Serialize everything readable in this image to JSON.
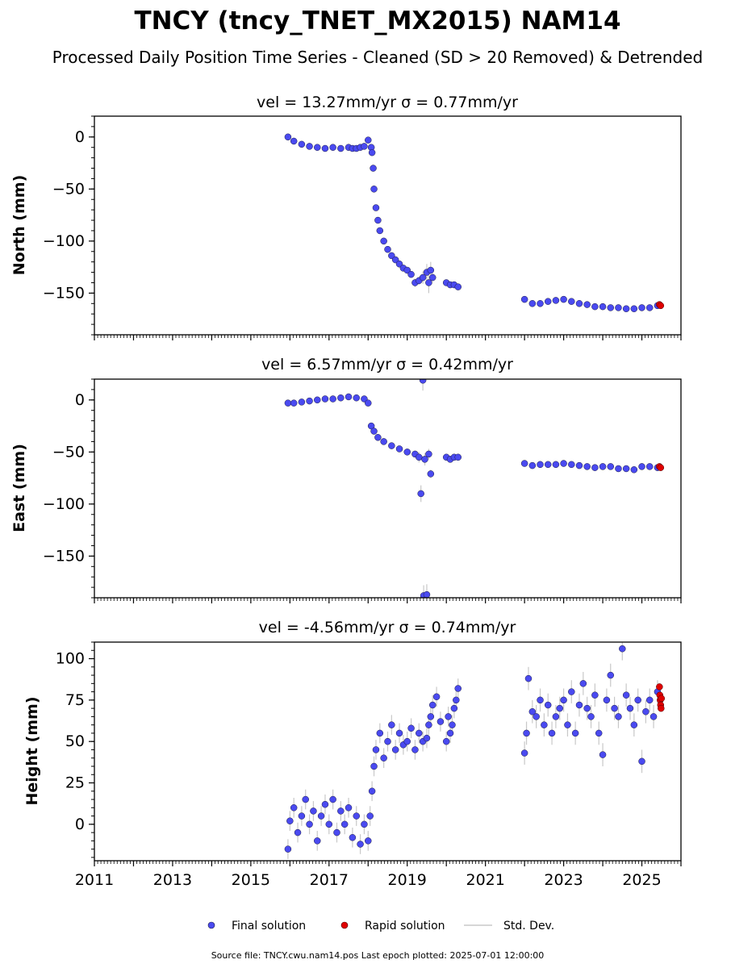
{
  "title": "TNCY (tncy_TNET_MX2015) NAM14",
  "subtitle": "Processed Daily Position Time Series - Cleaned (SD > 20 Removed) & Detrended",
  "legend": {
    "final": "Final solution",
    "rapid": "Rapid solution",
    "std": "Std. Dev."
  },
  "footer": "Source file: TNCY.cwu.nam14.pos  Last epoch plotted: 2025-07-01 12:00:00",
  "colors": {
    "final": "#4a4af0",
    "rapid": "#e00000",
    "stddev": "#c8c8c8",
    "edge": "#1a1a40"
  },
  "chart_data": [
    {
      "type": "scatter",
      "panel": "north",
      "title": "vel = 13.27mm/yr   σ = 0.77mm/yr",
      "ylabel": "North (mm)",
      "xlim": [
        2011,
        2026
      ],
      "ylim": [
        -190,
        20
      ],
      "yticks": [
        0,
        -50,
        -100,
        -150
      ],
      "ytick_labels": [
        "0",
        "−50",
        "−100",
        "−150"
      ],
      "xticks": [
        2011,
        2013,
        2015,
        2017,
        2019,
        2021,
        2023,
        2025
      ],
      "series": [
        {
          "name": "Final solution",
          "x": [
            2015.95,
            2016.1,
            2016.3,
            2016.5,
            2016.7,
            2016.9,
            2017.1,
            2017.3,
            2017.5,
            2017.6,
            2017.7,
            2017.8,
            2017.9,
            2018.0,
            2018.08,
            2018.1,
            2018.13,
            2018.15,
            2018.2,
            2018.25,
            2018.3,
            2018.4,
            2018.5,
            2018.6,
            2018.7,
            2018.8,
            2018.9,
            2019.0,
            2019.1,
            2019.2,
            2019.3,
            2019.4,
            2019.5,
            2019.55,
            2019.6,
            2019.65,
            2020.0,
            2020.1,
            2020.2,
            2020.3,
            2022.0,
            2022.2,
            2022.4,
            2022.6,
            2022.8,
            2023.0,
            2023.2,
            2023.4,
            2023.6,
            2023.8,
            2024.0,
            2024.2,
            2024.4,
            2024.6,
            2024.8,
            2025.0,
            2025.2,
            2025.4
          ],
          "y": [
            0,
            -4,
            -7,
            -9,
            -10,
            -11,
            -10,
            -11,
            -10,
            -11,
            -11,
            -10,
            -9,
            -3,
            -10,
            -15,
            -30,
            -50,
            -68,
            -80,
            -90,
            -100,
            -108,
            -114,
            -118,
            -122,
            -126,
            -128,
            -132,
            -140,
            -138,
            -135,
            -130,
            -140,
            -128,
            -135,
            -140,
            -142,
            -142,
            -144,
            -156,
            -160,
            -160,
            -158,
            -157,
            -156,
            -158,
            -160,
            -161,
            -163,
            -163,
            -164,
            -164,
            -165,
            -165,
            -164,
            -164,
            -162
          ],
          "err": [
            2,
            2,
            2,
            2,
            2,
            2,
            2,
            2,
            2,
            2,
            2,
            2,
            2,
            2,
            2,
            2,
            3,
            3,
            3,
            3,
            3,
            2,
            2,
            2,
            2,
            2,
            2,
            3,
            3,
            4,
            4,
            6,
            8,
            10,
            8,
            4,
            3,
            3,
            3,
            3,
            2,
            2,
            2,
            2,
            2,
            2,
            2,
            2,
            2,
            2,
            2,
            2,
            2,
            2,
            2,
            2,
            2,
            2
          ]
        },
        {
          "name": "Rapid solution",
          "x": [
            2025.45,
            2025.48
          ],
          "y": [
            -161,
            -162
          ]
        }
      ]
    },
    {
      "type": "scatter",
      "panel": "east",
      "title": "vel = 6.57mm/yr   σ = 0.42mm/yr",
      "ylabel": "East (mm)",
      "xlim": [
        2011,
        2026
      ],
      "ylim": [
        -190,
        20
      ],
      "yticks": [
        0,
        -50,
        -100,
        -150
      ],
      "ytick_labels": [
        "0",
        "−50",
        "−100",
        "−150"
      ],
      "xticks": [
        2011,
        2013,
        2015,
        2017,
        2019,
        2021,
        2023,
        2025
      ],
      "series": [
        {
          "name": "Final solution",
          "x": [
            2015.95,
            2016.1,
            2016.3,
            2016.5,
            2016.7,
            2016.9,
            2017.1,
            2017.3,
            2017.5,
            2017.7,
            2017.9,
            2018.0,
            2018.08,
            2018.15,
            2018.25,
            2018.4,
            2018.6,
            2018.8,
            2019.0,
            2019.2,
            2019.3,
            2019.35,
            2019.4,
            2019.42,
            2019.45,
            2019.5,
            2019.55,
            2019.6,
            2020.0,
            2020.1,
            2020.2,
            2020.3,
            2022.0,
            2022.2,
            2022.4,
            2022.6,
            2022.8,
            2023.0,
            2023.2,
            2023.4,
            2023.6,
            2023.8,
            2024.0,
            2024.2,
            2024.4,
            2024.6,
            2024.8,
            2025.0,
            2025.2,
            2025.4
          ],
          "y": [
            -3,
            -3,
            -2,
            -1,
            0,
            1,
            1,
            2,
            3,
            2,
            1,
            -3,
            -25,
            -30,
            -36,
            -40,
            -44,
            -47,
            -50,
            -52,
            -55,
            -90,
            19,
            -188,
            -57,
            -187,
            -52,
            -71,
            -55,
            -57,
            -55,
            -55,
            -61,
            -63,
            -62,
            -62,
            -62,
            -61,
            -62,
            -63,
            -64,
            -65,
            -64,
            -64,
            -66,
            -66,
            -67,
            -64,
            -64,
            -65
          ],
          "err": [
            2,
            2,
            2,
            2,
            2,
            2,
            2,
            2,
            2,
            2,
            2,
            2,
            2,
            2,
            2,
            2,
            2,
            3,
            3,
            3,
            5,
            8,
            10,
            10,
            6,
            10,
            5,
            4,
            3,
            3,
            3,
            3,
            2,
            2,
            2,
            2,
            2,
            2,
            2,
            2,
            2,
            2,
            2,
            2,
            2,
            2,
            2,
            2,
            2,
            2
          ]
        },
        {
          "name": "Rapid solution",
          "x": [
            2025.45,
            2025.48
          ],
          "y": [
            -64,
            -65
          ]
        }
      ]
    },
    {
      "type": "scatter",
      "panel": "height",
      "title": "vel = -4.56mm/yr   σ = 0.74mm/yr",
      "ylabel": "Height (mm)",
      "xlim": [
        2011,
        2026
      ],
      "ylim": [
        -22,
        110
      ],
      "yticks": [
        100,
        75,
        50,
        25,
        0
      ],
      "ytick_labels": [
        "100",
        "75",
        "50",
        "25",
        "0"
      ],
      "xticks": [
        2011,
        2013,
        2015,
        2017,
        2019,
        2021,
        2023,
        2025
      ],
      "xtick_labels": [
        "2011",
        "2013",
        "2015",
        "2017",
        "2019",
        "2021",
        "2023",
        "2025"
      ],
      "series": [
        {
          "name": "Final solution",
          "x": [
            2015.95,
            2016.0,
            2016.1,
            2016.2,
            2016.3,
            2016.4,
            2016.5,
            2016.6,
            2016.7,
            2016.8,
            2016.9,
            2017.0,
            2017.1,
            2017.2,
            2017.3,
            2017.4,
            2017.5,
            2017.6,
            2017.7,
            2017.8,
            2017.9,
            2018.0,
            2018.05,
            2018.1,
            2018.15,
            2018.2,
            2018.3,
            2018.4,
            2018.5,
            2018.6,
            2018.7,
            2018.8,
            2018.9,
            2019.0,
            2019.1,
            2019.2,
            2019.3,
            2019.4,
            2019.5,
            2019.55,
            2019.6,
            2019.65,
            2019.75,
            2019.85,
            2020.0,
            2020.05,
            2020.1,
            2020.15,
            2020.2,
            2020.25,
            2020.3,
            2022.0,
            2022.05,
            2022.1,
            2022.2,
            2022.3,
            2022.4,
            2022.5,
            2022.6,
            2022.7,
            2022.8,
            2022.9,
            2023.0,
            2023.1,
            2023.2,
            2023.3,
            2023.4,
            2023.5,
            2023.6,
            2023.7,
            2023.8,
            2023.9,
            2024.0,
            2024.1,
            2024.2,
            2024.3,
            2024.4,
            2024.5,
            2024.6,
            2024.7,
            2024.8,
            2024.9,
            2025.0,
            2025.1,
            2025.2,
            2025.3,
            2025.4
          ],
          "y": [
            -15,
            2,
            10,
            -5,
            5,
            15,
            0,
            8,
            -10,
            5,
            12,
            0,
            15,
            -5,
            8,
            0,
            10,
            -8,
            5,
            -12,
            0,
            -10,
            5,
            20,
            35,
            45,
            55,
            40,
            50,
            60,
            45,
            55,
            48,
            50,
            58,
            45,
            55,
            50,
            52,
            60,
            65,
            72,
            77,
            62,
            50,
            65,
            55,
            60,
            70,
            75,
            82,
            43,
            55,
            88,
            68,
            65,
            75,
            60,
            72,
            55,
            65,
            70,
            75,
            60,
            80,
            55,
            72,
            85,
            70,
            65,
            78,
            55,
            42,
            75,
            90,
            70,
            65,
            106,
            78,
            70,
            60,
            75,
            38,
            68,
            75,
            65,
            80
          ],
          "err": [
            6,
            6,
            6,
            6,
            6,
            6,
            6,
            6,
            6,
            6,
            6,
            6,
            6,
            6,
            6,
            6,
            6,
            6,
            6,
            6,
            6,
            6,
            6,
            6,
            6,
            6,
            6,
            6,
            6,
            6,
            6,
            6,
            6,
            6,
            6,
            6,
            6,
            6,
            6,
            6,
            6,
            6,
            6,
            6,
            6,
            6,
            6,
            6,
            6,
            6,
            6,
            7,
            7,
            7,
            7,
            7,
            7,
            7,
            7,
            7,
            7,
            7,
            7,
            7,
            7,
            7,
            7,
            7,
            7,
            7,
            7,
            7,
            7,
            7,
            7,
            7,
            7,
            7,
            7,
            7,
            7,
            7,
            7,
            7,
            7,
            7,
            7
          ]
        },
        {
          "name": "Rapid solution",
          "x": [
            2025.45,
            2025.46,
            2025.47,
            2025.48,
            2025.49,
            2025.5
          ],
          "y": [
            83,
            78,
            75,
            72,
            70,
            76
          ]
        }
      ]
    }
  ]
}
